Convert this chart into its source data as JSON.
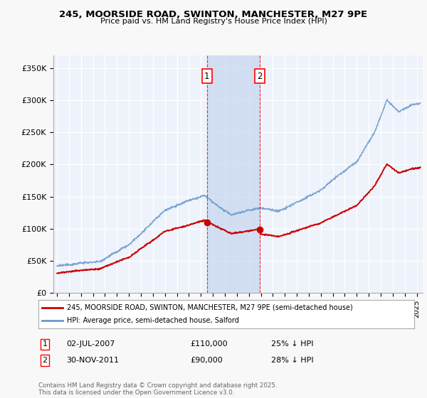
{
  "title": "245, MOORSIDE ROAD, SWINTON, MANCHESTER, M27 9PE",
  "subtitle": "Price paid vs. HM Land Registry's House Price Index (HPI)",
  "ylim": [
    0,
    370000
  ],
  "yticks": [
    0,
    50000,
    100000,
    150000,
    200000,
    250000,
    300000,
    350000
  ],
  "ytick_labels": [
    "£0",
    "£50K",
    "£100K",
    "£150K",
    "£200K",
    "£250K",
    "£300K",
    "£350K"
  ],
  "background_color": "#f8f8f8",
  "plot_background": "#eef2fa",
  "grid_color": "#ffffff",
  "red_color": "#cc0000",
  "blue_color": "#6699cc",
  "shade_color": "#c8d8f0",
  "marker1_date": 2007.5,
  "marker2_date": 2011.92,
  "legend_line1": "245, MOORSIDE ROAD, SWINTON, MANCHESTER, M27 9PE (semi-detached house)",
  "legend_line2": "HPI: Average price, semi-detached house, Salford",
  "footer": "Contains HM Land Registry data © Crown copyright and database right 2025.\nThis data is licensed under the Open Government Licence v3.0.",
  "xmin": 1994.7,
  "xmax": 2025.5
}
